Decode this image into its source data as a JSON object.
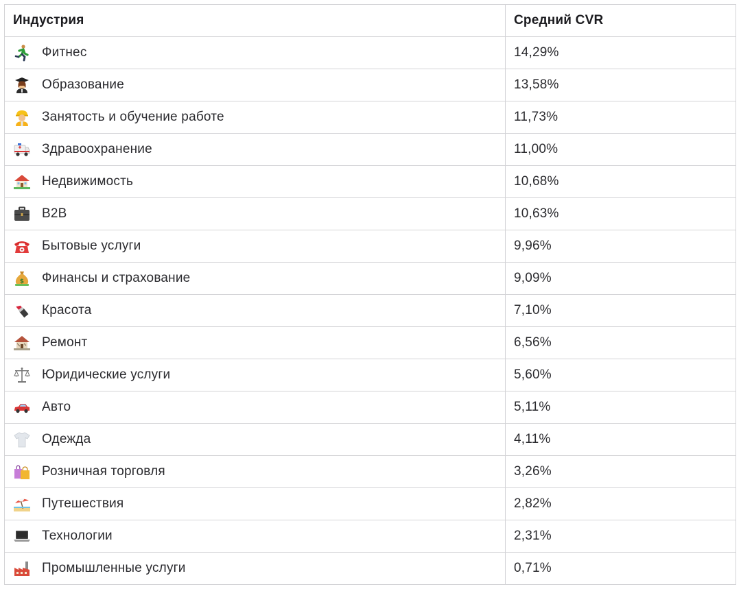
{
  "table": {
    "headers": [
      "Индустрия",
      "Средний CVR"
    ],
    "rows": [
      {
        "icon": "running-person-icon",
        "industry": "Фитнес",
        "cvr": "14,29%"
      },
      {
        "icon": "graduate-icon",
        "industry": "Образование",
        "cvr": "13,58%"
      },
      {
        "icon": "construction-worker-icon",
        "industry": "Занятость и обучение работе",
        "cvr": "11,73%"
      },
      {
        "icon": "ambulance-icon",
        "industry": "Здравоохранение",
        "cvr": "11,00%"
      },
      {
        "icon": "house-with-garden-icon",
        "industry": "Недвижимость",
        "cvr": "10,68%"
      },
      {
        "icon": "briefcase-icon",
        "industry": "B2B",
        "cvr": "10,63%"
      },
      {
        "icon": "telephone-icon",
        "industry": "Бытовые услуги",
        "cvr": "9,96%"
      },
      {
        "icon": "money-bag-icon",
        "industry": "Финансы и страхование",
        "cvr": "9,09%"
      },
      {
        "icon": "lipstick-icon",
        "industry": "Красота",
        "cvr": "7,10%"
      },
      {
        "icon": "derelict-house-icon",
        "industry": "Ремонт",
        "cvr": "6,56%"
      },
      {
        "icon": "balance-scale-icon",
        "industry": "Юридические услуги",
        "cvr": "5,60%"
      },
      {
        "icon": "car-icon",
        "industry": "Авто",
        "cvr": "5,11%"
      },
      {
        "icon": "t-shirt-icon",
        "industry": "Одежда",
        "cvr": "4,11%"
      },
      {
        "icon": "shopping-bags-icon",
        "industry": "Розничная торговля",
        "cvr": "3,26%"
      },
      {
        "icon": "beach-umbrella-icon",
        "industry": "Путешествия",
        "cvr": "2,82%"
      },
      {
        "icon": "laptop-icon",
        "industry": "Технологии",
        "cvr": "2,31%"
      },
      {
        "icon": "factory-icon",
        "industry": "Промышленные услуги",
        "cvr": "0,71%"
      }
    ]
  }
}
